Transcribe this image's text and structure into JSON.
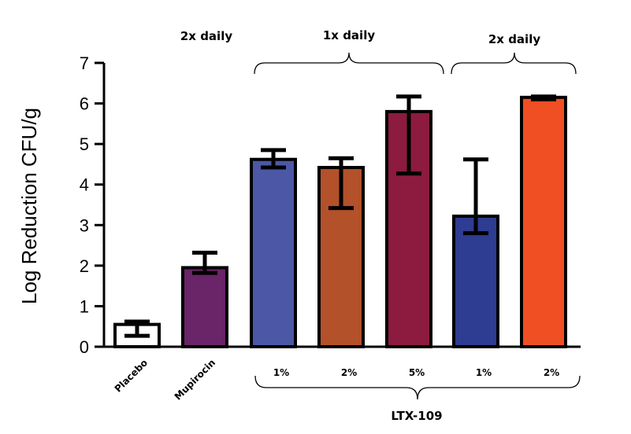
{
  "chart_data": {
    "type": "bar",
    "categories": [
      "Placebo",
      "Mupirocin",
      "1%",
      "2%",
      "5%",
      "1%",
      "2%"
    ],
    "values": [
      0.55,
      1.95,
      4.62,
      4.42,
      5.8,
      3.22,
      6.15
    ],
    "error_low": [
      0.27,
      1.82,
      4.42,
      3.42,
      4.27,
      2.8,
      6.1
    ],
    "error_high": [
      0.62,
      2.32,
      4.85,
      4.65,
      6.17,
      4.62,
      6.17
    ],
    "colors": [
      "#ffffff",
      "#6a2468",
      "#4c58a5",
      "#b2512a",
      "#8c1b3f",
      "#2e3c91",
      "#f04f23"
    ],
    "title": "",
    "xlabel": "",
    "ylabel": "Log Reduction CFU/g",
    "ylim": [
      0,
      7
    ],
    "yticks": [
      "0",
      "1",
      "2",
      "3",
      "4",
      "5",
      "6",
      "7"
    ],
    "grid": false,
    "legend": "none",
    "annotations": {
      "top_mupirocin": "2x daily",
      "top_bracket_1": "1x daily",
      "top_bracket_2": "2x daily",
      "bottom_bracket": "LTX-109"
    }
  }
}
